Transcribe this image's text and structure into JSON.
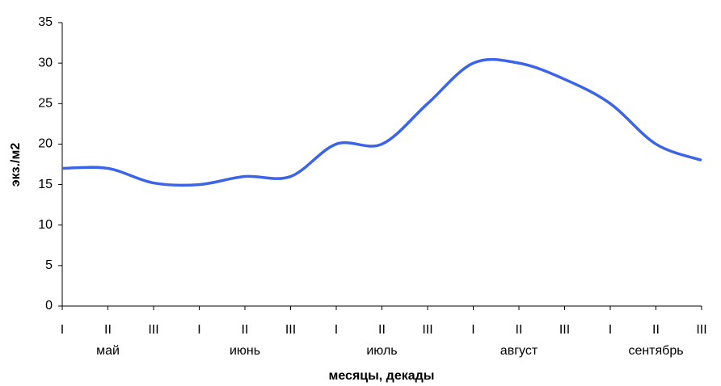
{
  "chart_data": {
    "type": "line",
    "x_label": "месяцы, декады",
    "y_label": "экз./м2",
    "categories": [
      "I",
      "II",
      "III",
      "I",
      "II",
      "III",
      "I",
      "II",
      "III",
      "I",
      "II",
      "III",
      "I",
      "II",
      "III"
    ],
    "months": [
      "май",
      "июнь",
      "июль",
      "август",
      "сентябрь"
    ],
    "series": [
      {
        "color": "#3c64e8",
        "values": [
          17,
          17,
          15.2,
          15,
          16,
          16,
          20,
          20,
          25,
          30,
          30,
          28,
          25,
          20,
          18
        ]
      }
    ],
    "ylim": [
      0,
      35
    ],
    "yticks": [
      0,
      5,
      10,
      15,
      20,
      25,
      30,
      35
    ],
    "grid": false
  }
}
